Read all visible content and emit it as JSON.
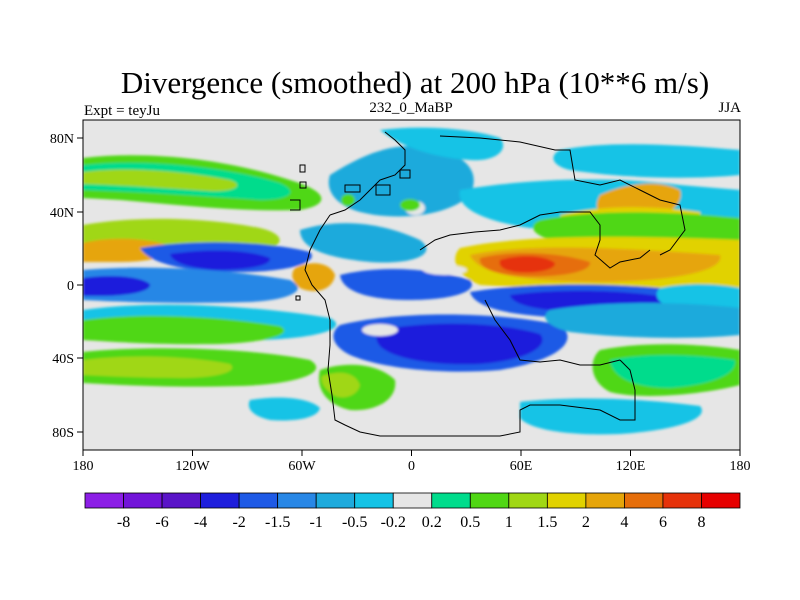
{
  "chart_data": {
    "type": "heatmap",
    "title": "Divergence (smoothed) at 200 hPa (10**6 m/s)",
    "left_label": "Expt = teyJu",
    "center_label": "232_0_MaBP",
    "right_label": "JJA",
    "x_ticks": [
      "180",
      "120W",
      "60W",
      "0",
      "60E",
      "120E",
      "180"
    ],
    "y_ticks": [
      "80N",
      "40N",
      "0",
      "40S",
      "80S"
    ],
    "x_range": [
      -180,
      180
    ],
    "y_range": [
      -90,
      90
    ],
    "colorbar": {
      "labels": [
        "-8",
        "-6",
        "-4",
        "-2",
        "-1.5",
        "-1",
        "-0.5",
        "-0.2",
        "0.2",
        "0.5",
        "1",
        "1.5",
        "2",
        "4",
        "6",
        "8"
      ],
      "colors": [
        "#8c1ee6",
        "#7214d9",
        "#5a14c8",
        "#1e1edc",
        "#1e5ae6",
        "#2887e6",
        "#1eaadc",
        "#14c3e6",
        "#e6e6e6",
        "#00dc8c",
        "#50d714",
        "#a0d714",
        "#e1d200",
        "#e6a50a",
        "#e66e0a",
        "#e6320a",
        "#e60000"
      ]
    }
  }
}
